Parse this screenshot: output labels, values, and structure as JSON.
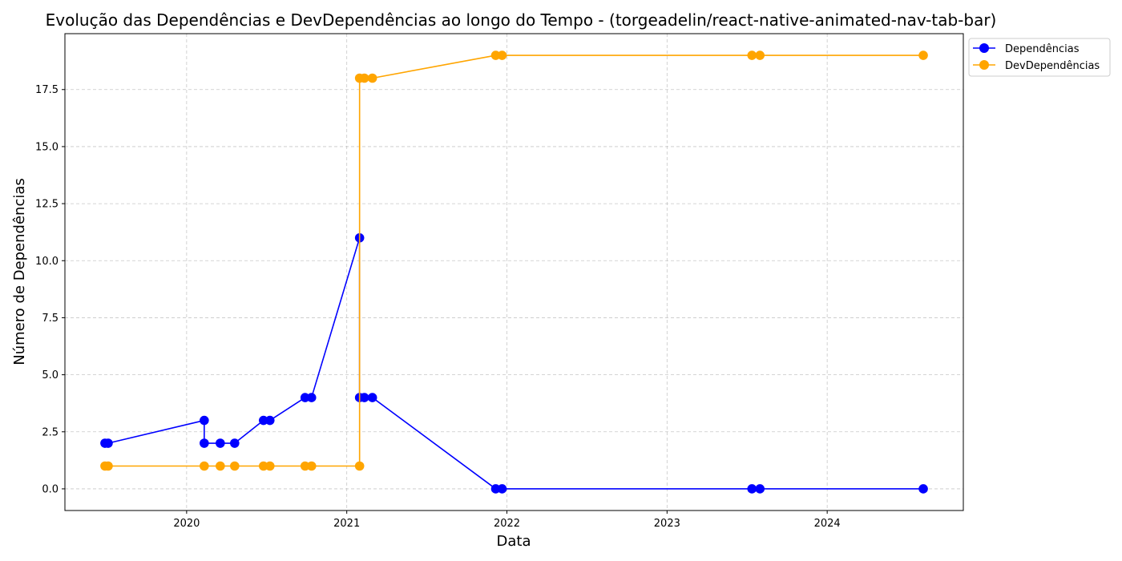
{
  "chart_data": {
    "type": "line",
    "title": "Evolução das Dependências e DevDependências ao longo do Tempo - (torgeadelin/react-native-animated-nav-tab-bar)",
    "xlabel": "Data",
    "ylabel": "Número de Dependências",
    "xlim": [
      2019.24,
      2024.85
    ],
    "ylim": [
      -0.95,
      19.95
    ],
    "x_ticks": [
      2020,
      2021,
      2022,
      2023,
      2024
    ],
    "y_ticks": [
      0.0,
      2.5,
      5.0,
      7.5,
      10.0,
      12.5,
      15.0,
      17.5
    ],
    "y_tick_labels": [
      "0.0",
      "2.5",
      "5.0",
      "7.5",
      "10.0",
      "12.5",
      "15.0",
      "17.5"
    ],
    "grid": true,
    "legend_position": "outside-top-right",
    "series": [
      {
        "name": "Dependências",
        "color": "#0000ff",
        "points": [
          [
            2019.49,
            2
          ],
          [
            2019.51,
            2
          ],
          [
            2020.11,
            3
          ],
          [
            2020.11,
            2
          ],
          [
            2020.21,
            2
          ],
          [
            2020.3,
            2
          ],
          [
            2020.48,
            3
          ],
          [
            2020.52,
            3
          ],
          [
            2020.74,
            4
          ],
          [
            2020.78,
            4
          ],
          [
            2021.08,
            11
          ],
          [
            2021.08,
            4
          ],
          [
            2021.11,
            4
          ],
          [
            2021.16,
            4
          ],
          [
            2021.93,
            0
          ],
          [
            2021.97,
            0
          ],
          [
            2023.53,
            0
          ],
          [
            2023.58,
            0
          ],
          [
            2024.6,
            0
          ]
        ]
      },
      {
        "name": "DevDependências",
        "color": "#ffa500",
        "points": [
          [
            2019.49,
            1
          ],
          [
            2019.51,
            1
          ],
          [
            2020.11,
            1
          ],
          [
            2020.21,
            1
          ],
          [
            2020.3,
            1
          ],
          [
            2020.48,
            1
          ],
          [
            2020.52,
            1
          ],
          [
            2020.74,
            1
          ],
          [
            2020.78,
            1
          ],
          [
            2021.08,
            1
          ],
          [
            2021.08,
            18
          ],
          [
            2021.11,
            18
          ],
          [
            2021.16,
            18
          ],
          [
            2021.93,
            19
          ],
          [
            2021.97,
            19
          ],
          [
            2023.53,
            19
          ],
          [
            2023.58,
            19
          ],
          [
            2024.6,
            19
          ]
        ]
      }
    ]
  }
}
